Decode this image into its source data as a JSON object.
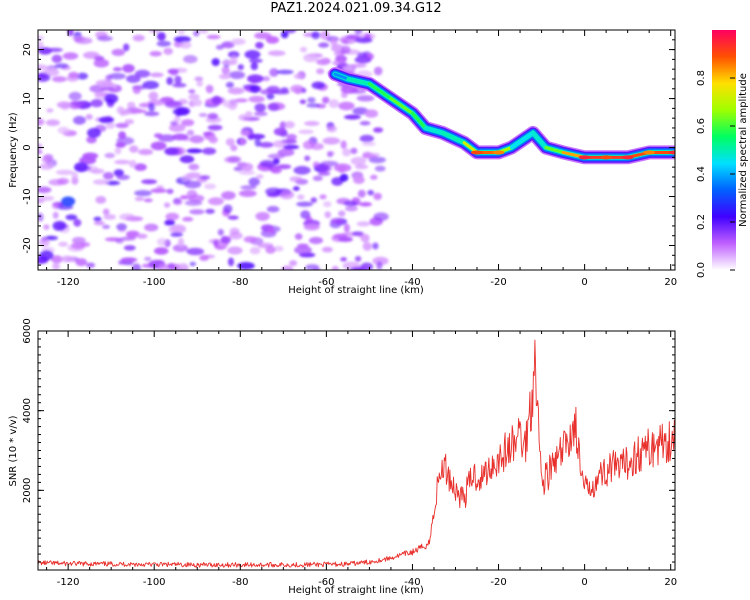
{
  "title": "PAZ1.2024.021.09.34.G12",
  "chart_data": [
    {
      "type": "heatmap",
      "xlabel": "Height of straight line (km)",
      "ylabel": "Frequency (Hz)",
      "xlim": [
        -127,
        21
      ],
      "ylim": [
        -25,
        24
      ],
      "xticks": [
        -120,
        -100,
        -80,
        -60,
        -40,
        -20,
        0,
        20
      ],
      "yticks": [
        -20,
        -10,
        0,
        10,
        20
      ],
      "colorbar": {
        "label": "Normalized spectral amplitude",
        "range": [
          0.0,
          1.0
        ],
        "ticks": [
          0.0,
          0.2,
          0.4,
          0.6,
          0.8
        ],
        "colors": [
          "#ffffff",
          "#c060ff",
          "#4000ff",
          "#0060ff",
          "#00e0ff",
          "#00ff60",
          "#a0ff00",
          "#ffe000",
          "#ff5000",
          "#ff0060"
        ]
      },
      "signal_ridge": {
        "x": [
          -58,
          -55,
          -50,
          -45,
          -40,
          -37,
          -33,
          -28,
          -25,
          -20,
          -17,
          -12,
          -9,
          -5,
          0,
          5,
          10,
          15,
          21
        ],
        "frequency_hz": [
          15,
          14,
          13,
          10,
          7,
          4,
          3,
          1,
          -1,
          -1,
          0,
          3,
          0,
          -1,
          -2,
          -2,
          -2,
          -1,
          -1
        ],
        "amplitude": [
          0.3,
          0.45,
          0.55,
          0.6,
          0.65,
          0.5,
          0.45,
          0.55,
          0.9,
          0.85,
          0.5,
          0.4,
          0.55,
          0.7,
          0.95,
          0.9,
          0.95,
          0.85,
          0.95
        ]
      },
      "noise_region_x": [
        -127,
        -47
      ]
    },
    {
      "type": "line",
      "xlabel": "Height of straight line (km)",
      "ylabel": "SNR (10 * v/v)",
      "xlim": [
        -127,
        21
      ],
      "ylim": [
        0,
        6000
      ],
      "xticks": [
        -120,
        -100,
        -80,
        -60,
        -40,
        -20,
        0,
        20
      ],
      "yticks": [
        2000,
        4000,
        6000
      ],
      "series": [
        {
          "color": "#e8302c",
          "x": [
            -127,
            -120,
            -110,
            -100,
            -90,
            -80,
            -70,
            -60,
            -55,
            -50,
            -45,
            -42,
            -40,
            -38,
            -36,
            -35,
            -34,
            -33,
            -32,
            -30,
            -28,
            -26,
            -24,
            -22,
            -20,
            -18,
            -16,
            -15,
            -14,
            -13,
            -12,
            -11.5,
            -11,
            -10,
            -8,
            -6,
            -4,
            -3,
            -2,
            -1,
            0,
            1,
            2,
            4,
            6,
            8,
            10,
            12,
            14,
            16,
            18,
            20,
            21
          ],
          "y": [
            180,
            160,
            150,
            140,
            130,
            130,
            130,
            140,
            150,
            200,
            300,
            400,
            450,
            550,
            700,
            1500,
            2200,
            2600,
            2500,
            2000,
            1800,
            2400,
            2300,
            2600,
            2800,
            3000,
            3200,
            3500,
            3000,
            3800,
            4500,
            5900,
            4200,
            2200,
            2500,
            2800,
            3200,
            3500,
            3600,
            2500,
            2000,
            2100,
            2200,
            2400,
            2600,
            2500,
            2700,
            2900,
            3000,
            3100,
            3200,
            3300,
            3400
          ]
        }
      ]
    }
  ]
}
